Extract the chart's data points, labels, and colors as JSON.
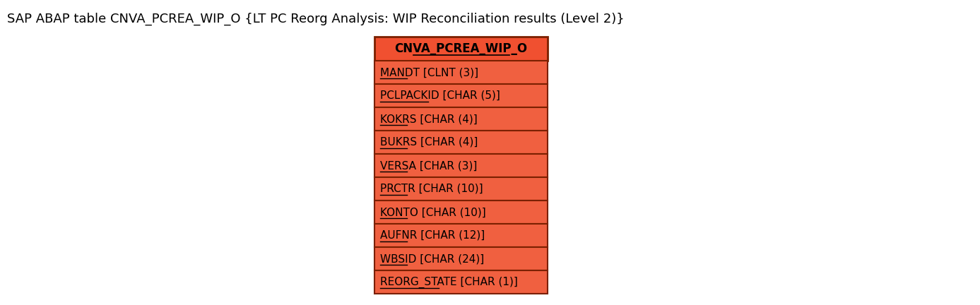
{
  "title": "SAP ABAP table CNVA_PCREA_WIP_O {LT PC Reorg Analysis: WIP Reconciliation results (Level 2)}",
  "table_name": "CNVA_PCREA_WIP_O",
  "fields": [
    "MANDT [CLNT (3)]",
    "PCLPACKID [CHAR (5)]",
    "KOKRS [CHAR (4)]",
    "BUKRS [CHAR (4)]",
    "VERSA [CHAR (3)]",
    "PRCTR [CHAR (10)]",
    "KONTO [CHAR (10)]",
    "AUFNR [CHAR (12)]",
    "WBSID [CHAR (24)]",
    "REORG_STATE [CHAR (1)]"
  ],
  "header_bg_color": "#F05030",
  "row_bg_color": "#F06040",
  "border_color": "#7B2000",
  "header_text_color": "#000000",
  "field_text_color": "#000000",
  "title_color": "#000000",
  "title_fontsize": 13,
  "header_fontsize": 12,
  "field_fontsize": 11,
  "bg_color": "#FFFFFF",
  "fig_width": 13.87,
  "fig_height": 4.32,
  "dpi": 100
}
